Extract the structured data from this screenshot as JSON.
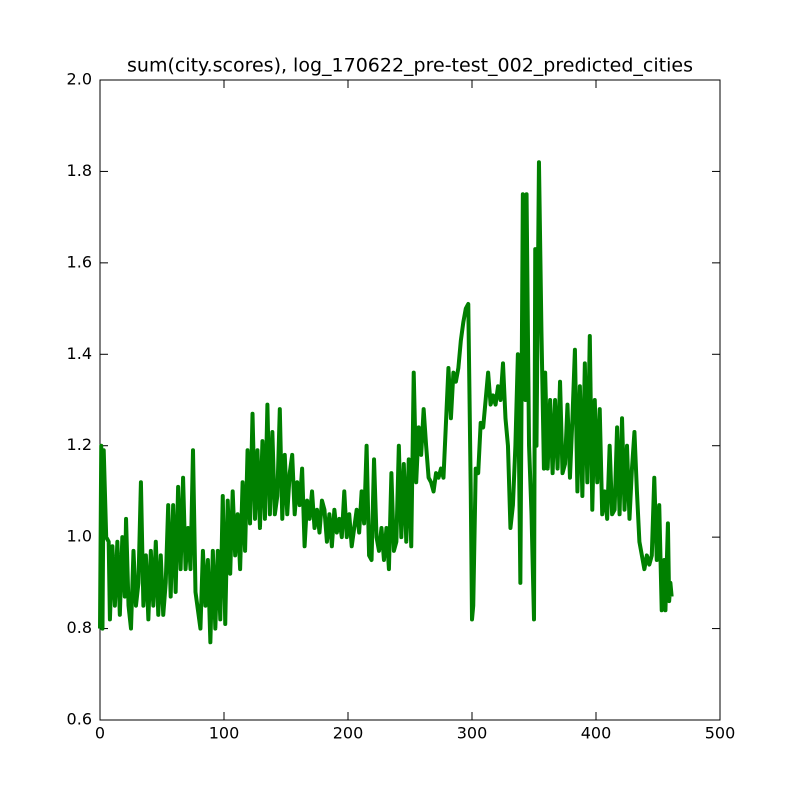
{
  "chart_data": {
    "type": "line",
    "title": "sum(city.scores), log_170622_pre-test_002_predicted_cities",
    "color": "#008000",
    "xlim": [
      0,
      500
    ],
    "xticks": [
      0,
      100,
      200,
      300,
      400,
      500
    ],
    "ylim": [
      0.6,
      2.0
    ],
    "yticks": [
      0.6,
      0.8,
      {
        "value": 1,
        "label": "1.0"
      },
      1.2,
      1.4,
      1.6,
      1.8,
      {
        "value": 2,
        "label": "2.0"
      }
    ],
    "x": [
      0,
      1,
      2,
      3,
      5,
      7,
      8,
      10,
      12,
      14,
      16,
      18,
      20,
      21,
      23,
      25,
      27,
      29,
      31,
      33,
      35,
      37,
      39,
      41,
      43,
      45,
      47,
      49,
      51,
      53,
      55,
      57,
      59,
      61,
      63,
      65,
      67,
      69,
      71,
      73,
      75,
      77,
      79,
      81,
      83,
      85,
      87,
      89,
      91,
      93,
      95,
      97,
      99,
      101,
      103,
      105,
      107,
      109,
      111,
      113,
      115,
      117,
      119,
      121,
      123,
      125,
      127,
      129,
      131,
      133,
      135,
      137,
      139,
      141,
      143,
      145,
      147,
      149,
      151,
      153,
      155,
      157,
      159,
      161,
      163,
      165,
      167,
      169,
      171,
      173,
      175,
      177,
      179,
      181,
      183,
      185,
      187,
      189,
      191,
      193,
      195,
      197,
      199,
      201,
      203,
      205,
      207,
      209,
      211,
      213,
      215,
      217,
      219,
      221,
      223,
      225,
      227,
      229,
      231,
      233,
      235,
      237,
      239,
      241,
      243,
      245,
      247,
      249,
      251,
      253,
      255,
      257,
      259,
      261,
      263,
      265,
      267,
      269,
      271,
      273,
      275,
      277,
      279,
      281,
      283,
      285,
      287,
      289,
      291,
      293,
      295,
      297,
      299,
      300,
      301,
      303,
      305,
      307,
      309,
      311,
      313,
      315,
      317,
      319,
      321,
      323,
      325,
      327,
      329,
      331,
      333,
      335,
      337,
      339,
      341,
      342,
      343,
      344,
      346,
      348,
      350,
      351,
      352,
      354,
      356,
      358,
      359,
      361,
      363,
      365,
      367,
      369,
      371,
      373,
      375,
      377,
      379,
      381,
      383,
      385,
      387,
      389,
      391,
      393,
      395,
      397,
      399,
      401,
      403,
      405,
      407,
      409,
      411,
      413,
      415,
      417,
      419,
      421,
      423,
      425,
      427,
      429,
      431,
      433,
      435,
      437,
      439,
      441,
      443,
      445,
      447,
      449,
      451,
      453,
      455,
      456,
      458,
      459,
      460,
      461
    ],
    "values": [
      0.8,
      1.2,
      0.8,
      1.19,
      1.0,
      0.99,
      0.82,
      0.98,
      0.85,
      0.99,
      0.83,
      1.0,
      0.87,
      1.04,
      0.85,
      0.8,
      0.97,
      0.85,
      0.9,
      1.12,
      0.85,
      0.96,
      0.82,
      0.97,
      0.85,
      0.99,
      0.83,
      0.96,
      0.83,
      0.9,
      1.07,
      0.87,
      1.07,
      0.88,
      1.11,
      0.93,
      1.13,
      0.93,
      1.02,
      0.93,
      1.19,
      0.88,
      0.84,
      0.8,
      0.97,
      0.85,
      0.95,
      0.77,
      0.97,
      0.8,
      0.97,
      0.82,
      1.09,
      0.81,
      1.08,
      0.92,
      1.1,
      0.96,
      1.05,
      0.93,
      1.12,
      0.97,
      1.19,
      1.03,
      1.27,
      1.04,
      1.19,
      1.02,
      1.21,
      1.04,
      1.29,
      1.05,
      1.23,
      1.05,
      1.09,
      1.28,
      1.04,
      1.18,
      1.05,
      1.14,
      1.18,
      1.05,
      1.12,
      1.07,
      1.15,
      0.98,
      1.08,
      1.04,
      1.1,
      1.02,
      1.06,
      1.01,
      1.08,
      1.06,
      0.99,
      1.05,
      0.98,
      1.06,
      1.01,
      1.04,
      1.0,
      1.1,
      1.0,
      1.05,
      0.98,
      1.02,
      1.06,
      1.01,
      1.1,
      1.03,
      1.2,
      0.96,
      0.95,
      1.17,
      1.0,
      0.97,
      1.02,
      0.95,
      1.02,
      0.93,
      1.14,
      0.97,
      0.99,
      1.2,
      1.0,
      1.16,
      0.99,
      1.17,
      0.98,
      1.36,
      1.12,
      1.24,
      1.18,
      1.28,
      1.2,
      1.13,
      1.12,
      1.1,
      1.14,
      1.13,
      1.15,
      1.13,
      1.25,
      1.37,
      1.26,
      1.36,
      1.34,
      1.37,
      1.43,
      1.47,
      1.5,
      1.51,
      1.1,
      0.82,
      0.85,
      1.15,
      1.14,
      1.25,
      1.24,
      1.3,
      1.36,
      1.29,
      1.31,
      1.29,
      1.33,
      1.3,
      1.38,
      1.26,
      1.2,
      1.02,
      1.07,
      1.2,
      1.4,
      0.9,
      1.75,
      1.45,
      1.3,
      1.75,
      1.2,
      1.05,
      0.82,
      1.63,
      1.2,
      1.82,
      1.45,
      1.15,
      1.36,
      1.15,
      1.3,
      1.14,
      1.3,
      1.15,
      1.34,
      1.14,
      1.16,
      1.29,
      1.13,
      1.26,
      1.41,
      1.1,
      1.33,
      1.09,
      1.38,
      1.12,
      1.44,
      1.06,
      1.3,
      1.12,
      1.28,
      1.05,
      1.1,
      1.04,
      1.2,
      1.05,
      1.06,
      1.24,
      1.05,
      1.26,
      1.06,
      1.2,
      1.04,
      1.15,
      1.23,
      1.1,
      0.99,
      0.96,
      0.93,
      0.96,
      0.94,
      0.96,
      1.13,
      0.95,
      1.07,
      0.84,
      0.95,
      0.84,
      1.03,
      0.86,
      0.9,
      0.87
    ]
  }
}
